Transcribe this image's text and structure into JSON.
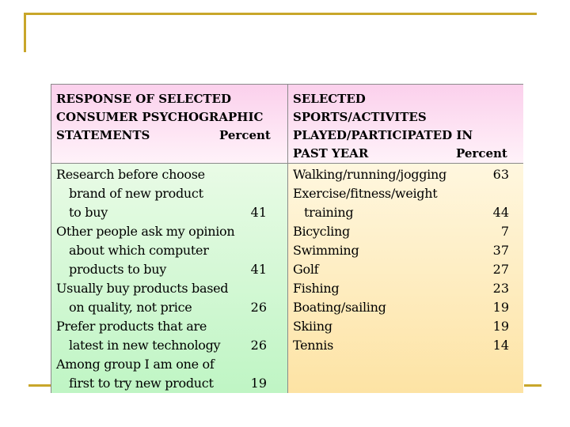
{
  "left_header": {
    "lines": [
      "RESPONSE OF SELECTED",
      "CONSUMER PSYCHOGRAPHIC",
      "STATEMENTS"
    ],
    "percent_label": "Percent"
  },
  "right_header": {
    "lines": [
      "SELECTED",
      "SPORTS/ACTIVITES",
      "PLAYED/PARTICIPATED IN",
      "PAST YEAR"
    ],
    "percent_label": "Percent"
  },
  "statements": [
    {
      "lines": [
        "Research before choose",
        "brand of new product",
        "to buy"
      ],
      "percent": "41"
    },
    {
      "lines": [
        "Other people ask my opinion",
        "about which computer",
        "products to buy"
      ],
      "percent": "41"
    },
    {
      "lines": [
        "Usually buy products based",
        "on quality, not price"
      ],
      "percent": "26"
    },
    {
      "lines": [
        "Prefer products that are",
        "latest in new technology"
      ],
      "percent": "26"
    },
    {
      "lines": [
        "Among group I am one of",
        "first to try new product"
      ],
      "percent": "19"
    }
  ],
  "activities": [
    {
      "lines": [
        "Walking/running/jogging"
      ],
      "percent": "63"
    },
    {
      "lines": [
        "Exercise/fitness/weight",
        "training"
      ],
      "percent": "44"
    },
    {
      "lines": [
        "Bicycling"
      ],
      "percent": "7"
    },
    {
      "lines": [
        "Swimming"
      ],
      "percent": "37"
    },
    {
      "lines": [
        "Golf"
      ],
      "percent": "27"
    },
    {
      "lines": [
        "Fishing"
      ],
      "percent": "23"
    },
    {
      "lines": [
        "Boating/sailing"
      ],
      "percent": "19"
    },
    {
      "lines": [
        "Skiing"
      ],
      "percent": "19"
    },
    {
      "lines": [
        "Tennis"
      ],
      "percent": "14"
    }
  ]
}
